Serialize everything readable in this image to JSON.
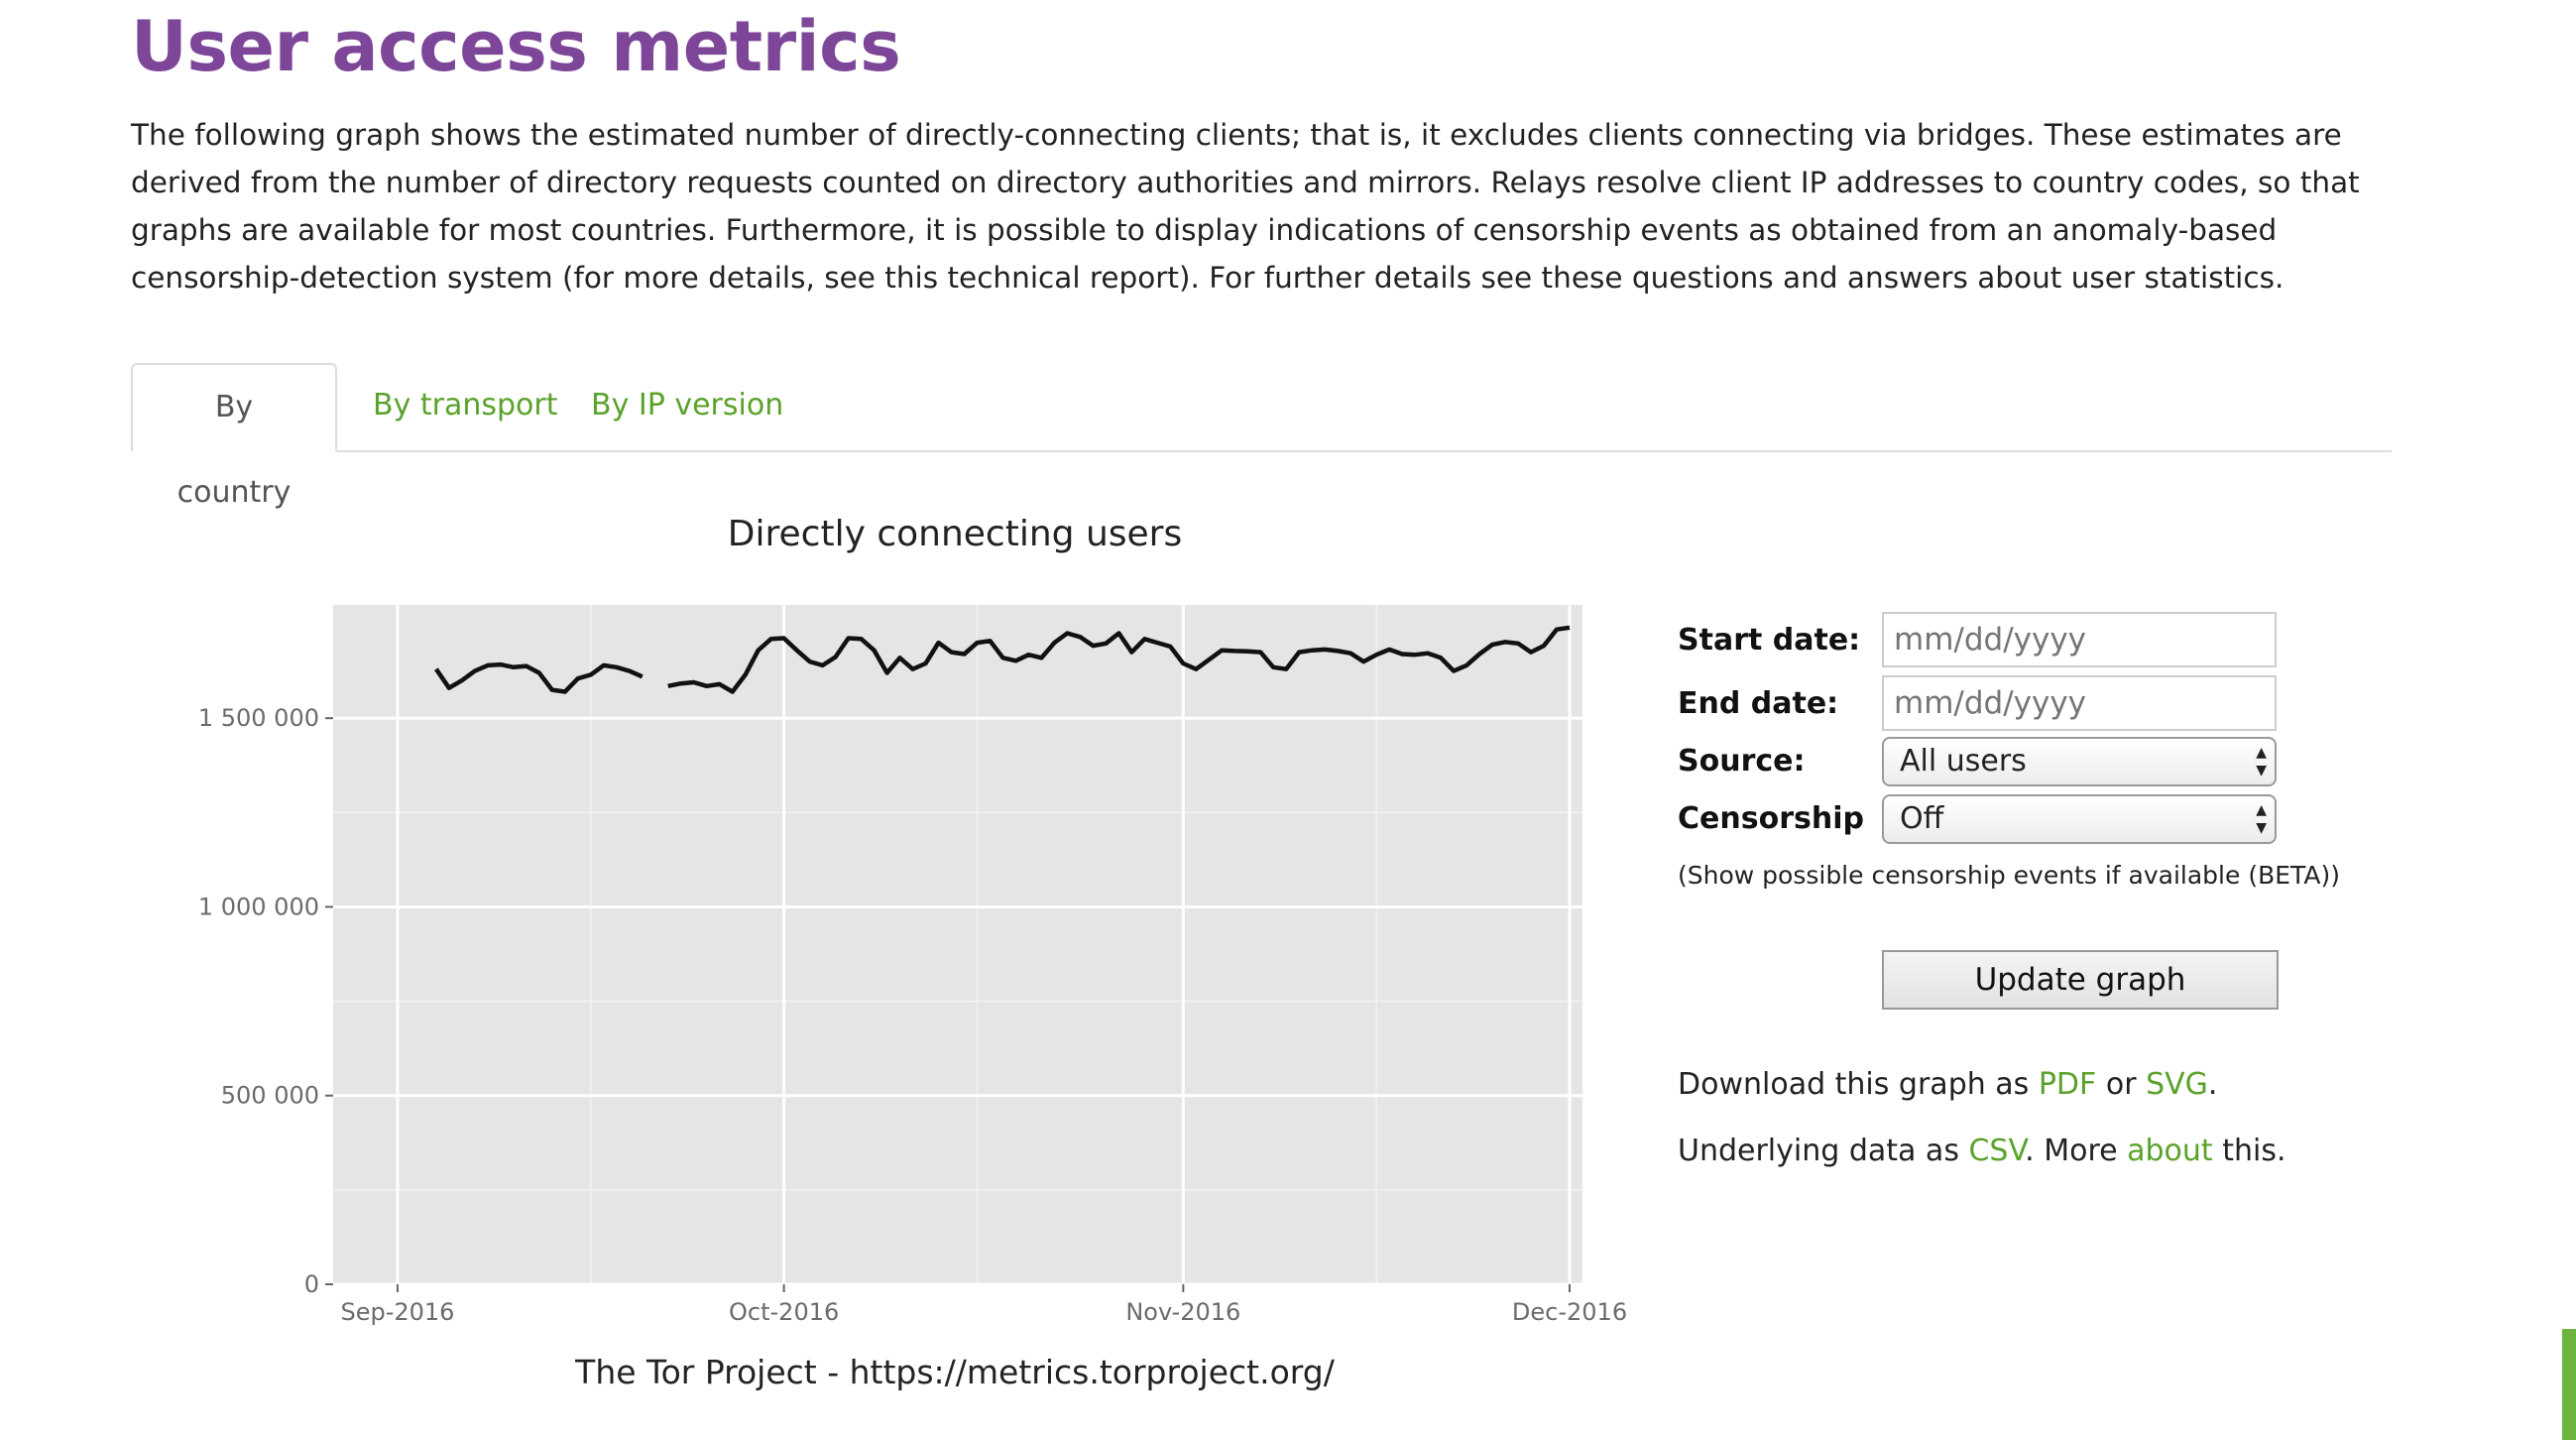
{
  "page": {
    "title": "User access metrics",
    "intro": "The following graph shows the estimated number of directly-connecting clients; that is, it excludes clients connecting via bridges. These estimates are derived from the number of directory requests counted on directory authorities and mirrors. Relays resolve client IP addresses to country codes, so that graphs are available for most countries. Furthermore, it is possible to display indications of censorship events as obtained from an anomaly-based censorship-detection system (for more details, see this technical report). For further details see these questions and answers about user statistics."
  },
  "tabs": [
    {
      "label": "By country",
      "active": true
    },
    {
      "label": "By transport",
      "active": false
    },
    {
      "label": "By IP version",
      "active": false
    }
  ],
  "form": {
    "start_label": "Start date:",
    "start_placeholder": "mm/dd/yyyy",
    "end_label": "End date:",
    "end_placeholder": "mm/dd/yyyy",
    "source_label": "Source:",
    "source_value": "All users",
    "censorship_label": "Censorship",
    "censorship_value": "Off",
    "censorship_hint": "(Show possible censorship events if available (BETA))",
    "update_button": "Update graph"
  },
  "downloads": {
    "graph_prefix": "Download this graph as ",
    "pdf": "PDF",
    "or": " or ",
    "svg": "SVG",
    "graph_suffix": ".",
    "data_prefix": "Underlying data as ",
    "csv": "CSV",
    "more": ". More ",
    "about": "about",
    "data_suffix": " this."
  },
  "colors": {
    "title_purple": "#7d4698",
    "link_green": "#5aa22b",
    "plot_bg": "#e5e5e5",
    "line": "#111111"
  },
  "chart_data": {
    "type": "line",
    "title": "Directly connecting users",
    "footer": "The Tor Project - https://metrics.torproject.org/",
    "xlabel": "",
    "ylabel": "",
    "x_ticks": [
      "Sep-2016",
      "Oct-2016",
      "Nov-2016",
      "Dec-2016"
    ],
    "y_ticks": [
      "0",
      "500 000",
      "1 000 000",
      "1 500 000"
    ],
    "ylim": [
      0,
      1800000
    ],
    "xlim": [
      "2016-08-27",
      "2016-12-02"
    ],
    "grid": true,
    "series": [
      {
        "segments": [
          [
            [
              "2016-09-04",
              1630000
            ],
            [
              "2016-09-05",
              1580000
            ],
            [
              "2016-09-06",
              1600000
            ],
            [
              "2016-09-07",
              1625000
            ],
            [
              "2016-09-08",
              1640000
            ],
            [
              "2016-09-09",
              1642000
            ],
            [
              "2016-09-10",
              1635000
            ],
            [
              "2016-09-11",
              1638000
            ],
            [
              "2016-09-12",
              1620000
            ],
            [
              "2016-09-13",
              1575000
            ],
            [
              "2016-09-14",
              1570000
            ],
            [
              "2016-09-15",
              1605000
            ],
            [
              "2016-09-16",
              1615000
            ],
            [
              "2016-09-17",
              1640000
            ],
            [
              "2016-09-18",
              1635000
            ],
            [
              "2016-09-19",
              1625000
            ],
            [
              "2016-09-20",
              1610000
            ]
          ],
          [
            [
              "2016-09-22",
              1585000
            ],
            [
              "2016-09-23",
              1592000
            ],
            [
              "2016-09-24",
              1595000
            ],
            [
              "2016-09-25",
              1585000
            ],
            [
              "2016-09-26",
              1590000
            ],
            [
              "2016-09-27",
              1570000
            ],
            [
              "2016-09-28",
              1615000
            ],
            [
              "2016-09-29",
              1680000
            ],
            [
              "2016-09-30",
              1710000
            ],
            [
              "2016-10-01",
              1712000
            ],
            [
              "2016-10-02",
              1680000
            ],
            [
              "2016-10-03",
              1650000
            ],
            [
              "2016-10-04",
              1640000
            ],
            [
              "2016-10-05",
              1662000
            ],
            [
              "2016-10-06",
              1712000
            ],
            [
              "2016-10-07",
              1710000
            ],
            [
              "2016-10-08",
              1680000
            ],
            [
              "2016-10-09",
              1620000
            ],
            [
              "2016-10-10",
              1660000
            ],
            [
              "2016-10-11",
              1630000
            ],
            [
              "2016-10-12",
              1645000
            ],
            [
              "2016-10-13",
              1700000
            ],
            [
              "2016-10-14",
              1675000
            ],
            [
              "2016-10-15",
              1670000
            ],
            [
              "2016-10-16",
              1700000
            ],
            [
              "2016-10-17",
              1705000
            ],
            [
              "2016-10-18",
              1660000
            ],
            [
              "2016-10-19",
              1652000
            ],
            [
              "2016-10-20",
              1668000
            ],
            [
              "2016-10-21",
              1660000
            ],
            [
              "2016-10-22",
              1700000
            ],
            [
              "2016-10-23",
              1725000
            ],
            [
              "2016-10-24",
              1715000
            ],
            [
              "2016-10-25",
              1692000
            ],
            [
              "2016-10-26",
              1698000
            ],
            [
              "2016-10-27",
              1725000
            ],
            [
              "2016-10-28",
              1675000
            ],
            [
              "2016-10-29",
              1710000
            ],
            [
              "2016-10-30",
              1700000
            ],
            [
              "2016-10-31",
              1690000
            ],
            [
              "2016-11-01",
              1645000
            ],
            [
              "2016-11-02",
              1630000
            ],
            [
              "2016-11-03",
              1655000
            ],
            [
              "2016-11-04",
              1680000
            ],
            [
              "2016-11-05",
              1678000
            ],
            [
              "2016-11-06",
              1677000
            ],
            [
              "2016-11-07",
              1675000
            ],
            [
              "2016-11-08",
              1635000
            ],
            [
              "2016-11-09",
              1630000
            ],
            [
              "2016-11-10",
              1675000
            ],
            [
              "2016-11-11",
              1680000
            ],
            [
              "2016-11-12",
              1682000
            ],
            [
              "2016-11-13",
              1678000
            ],
            [
              "2016-11-14",
              1672000
            ],
            [
              "2016-11-15",
              1650000
            ],
            [
              "2016-11-16",
              1668000
            ],
            [
              "2016-11-17",
              1682000
            ],
            [
              "2016-11-18",
              1670000
            ],
            [
              "2016-11-19",
              1668000
            ],
            [
              "2016-11-20",
              1672000
            ],
            [
              "2016-11-21",
              1660000
            ],
            [
              "2016-11-22",
              1625000
            ],
            [
              "2016-11-23",
              1640000
            ],
            [
              "2016-11-24",
              1670000
            ],
            [
              "2016-11-25",
              1695000
            ],
            [
              "2016-11-26",
              1702000
            ],
            [
              "2016-11-27",
              1698000
            ],
            [
              "2016-11-28",
              1675000
            ],
            [
              "2016-11-29",
              1692000
            ],
            [
              "2016-11-30",
              1735000
            ],
            [
              "2016-12-01",
              1740000
            ]
          ]
        ]
      }
    ]
  }
}
